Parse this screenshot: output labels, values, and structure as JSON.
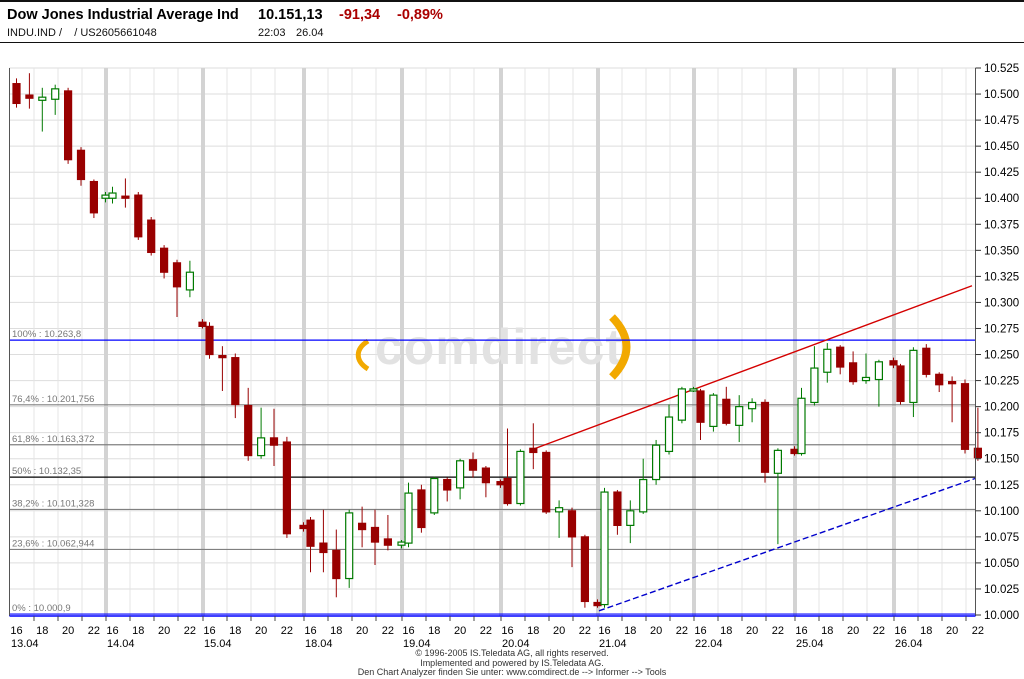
{
  "header": {
    "title": "Dow Jones Industrial Average Ind",
    "price": "10.151,13",
    "change": "-91,34",
    "change_pct": "-0,89%",
    "symbol_line": "INDU.IND /    / US2605661048",
    "time": "22:03",
    "date": "26.04",
    "change_color": "#aa0000"
  },
  "watermark": {
    "text": "comdirect",
    "arc_color": "#f2a900",
    "text_color": "#e2e2e2"
  },
  "footer": {
    "line1": "© 1996-2005 IS.Teledata AG, all rights reserved.",
    "line2": "Implemented and powered by IS.Teledata AG.",
    "line3": "Den Chart Analyzer finden Sie unter: www.comdirect.de --> Informer --> Tools"
  },
  "chart_data": {
    "type": "candlestick",
    "title": "Dow Jones Industrial Average Ind intraday hourly candles",
    "ylim": [
      10000,
      10525
    ],
    "y_axis": {
      "min": 10000,
      "max": 10525,
      "step": 25,
      "tick_labels": [
        "10.525",
        "10.500",
        "10.475",
        "10.450",
        "10.425",
        "10.400",
        "10.375",
        "10.350",
        "10.325",
        "10.300",
        "10.275",
        "10.250",
        "10.225",
        "10.200",
        "10.175",
        "10.150",
        "10.125",
        "10.100",
        "10.075",
        "10.050",
        "10.025",
        "10.000"
      ]
    },
    "x_axis": {
      "hour_labels": [
        "16",
        "18",
        "20",
        "22"
      ]
    },
    "colors": {
      "up": "#007a00",
      "down": "#990000",
      "grid": "#dddddd",
      "vgrid": "#e4e4e4",
      "separator": "#d3d3d3",
      "fib_blue": "#0000ff",
      "fib_gray": "#808080",
      "fib_black": "#000000",
      "trend_red": "#d40000",
      "trend_blue": "#0000cc"
    },
    "fib_levels": [
      {
        "label": "100% : 10.263,8",
        "price": 10263.8,
        "style": "blue"
      },
      {
        "label": "76,4% : 10.201,756",
        "price": 10201.756,
        "style": "gray"
      },
      {
        "label": "61,8% : 10.163,372",
        "price": 10163.372,
        "style": "gray"
      },
      {
        "label": "50% : 10.132,35",
        "price": 10132.35,
        "style": "black"
      },
      {
        "label": "38,2% : 10.101,328",
        "price": 10101.328,
        "style": "gray"
      },
      {
        "label": "23,6% : 10.062,944",
        "price": 10062.944,
        "style": "gray"
      },
      {
        "label": "0% : 10.000,9",
        "price": 10000.9,
        "style": "blue"
      }
    ],
    "trendlines": [
      {
        "name": "resistance",
        "style": "solid",
        "color_key": "trend_red",
        "x1": 530,
        "price1": 10158,
        "x2": 972,
        "price2": 10316
      },
      {
        "name": "support",
        "style": "dashed",
        "color_key": "trend_blue",
        "x1": 599,
        "price1": 10004,
        "x2": 975,
        "price2": 10131
      }
    ],
    "days": [
      {
        "date": "13.04",
        "candles": [
          [
            10510,
            10515,
            10487,
            10491
          ],
          [
            10499,
            10520,
            10486,
            10496
          ],
          [
            10494,
            10506,
            10464,
            10497
          ],
          [
            10495,
            10509,
            10480,
            10505
          ],
          [
            10503,
            10506,
            10433,
            10437
          ],
          [
            10446,
            10449,
            10412,
            10418
          ],
          [
            10416,
            10418,
            10381,
            10386
          ],
          [
            10400,
            10406,
            10396,
            10403
          ]
        ]
      },
      {
        "date": "14.04",
        "candles": [
          [
            10400,
            10411,
            10395,
            10405
          ],
          [
            10402,
            10419,
            10391,
            10400
          ],
          [
            10403,
            10406,
            10360,
            10363
          ],
          [
            10379,
            10382,
            10345,
            10348
          ],
          [
            10352,
            10355,
            10323,
            10329
          ],
          [
            10338,
            10341,
            10286,
            10315
          ],
          [
            10312,
            10340,
            10305,
            10329
          ],
          [
            10281,
            10284,
            10275,
            10277
          ]
        ]
      },
      {
        "date": "15.04",
        "candles": [
          [
            10277,
            10281,
            10246,
            10250
          ],
          [
            10249,
            10258,
            10215,
            10247
          ],
          [
            10247,
            10251,
            10189,
            10202
          ],
          [
            10201,
            10218,
            10148,
            10153
          ],
          [
            10153,
            10199,
            10150,
            10170
          ],
          [
            10170,
            10198,
            10143,
            10163
          ],
          [
            10166,
            10171,
            10074,
            10078
          ],
          [
            10086,
            10089,
            10080,
            10083
          ]
        ]
      },
      {
        "date": "18.04",
        "candles": [
          [
            10091,
            10094,
            10041,
            10066
          ],
          [
            10069,
            10101,
            10041,
            10060
          ],
          [
            10062,
            10082,
            10017,
            10035
          ],
          [
            10035,
            10101,
            10026,
            10098
          ],
          [
            10088,
            10104,
            10065,
            10082
          ],
          [
            10084,
            10101,
            10048,
            10070
          ],
          [
            10073,
            10096,
            10062,
            10067
          ],
          [
            10067,
            10072,
            10064,
            10070
          ]
        ]
      },
      {
        "date": "19.04",
        "candles": [
          [
            10069,
            10127,
            10065,
            10117
          ],
          [
            10120,
            10125,
            10079,
            10084
          ],
          [
            10098,
            10133,
            10096,
            10131
          ],
          [
            10130,
            10132,
            10109,
            10120
          ],
          [
            10122,
            10150,
            10111,
            10148
          ],
          [
            10149,
            10156,
            10132,
            10139
          ],
          [
            10141,
            10143,
            10113,
            10127
          ],
          [
            10128,
            10130,
            10122,
            10125
          ]
        ]
      },
      {
        "date": "20.04",
        "candles": [
          [
            10131,
            10179,
            10105,
            10107
          ],
          [
            10107,
            10159,
            10105,
            10157
          ],
          [
            10160,
            10184,
            10140,
            10156
          ],
          [
            10156,
            10158,
            10097,
            10099
          ],
          [
            10099,
            10110,
            10074,
            10103
          ],
          [
            10100,
            10103,
            10046,
            10075
          ],
          [
            10075,
            10077,
            10007,
            10013
          ],
          [
            10012,
            10015,
            10007,
            10009
          ]
        ]
      },
      {
        "date": "21.04",
        "candles": [
          [
            10010,
            10122,
            10007,
            10118
          ],
          [
            10118,
            10120,
            10077,
            10086
          ],
          [
            10086,
            10110,
            10069,
            10100
          ],
          [
            10099,
            10150,
            10097,
            10130
          ],
          [
            10130,
            10168,
            10125,
            10163
          ],
          [
            10157,
            10202,
            10154,
            10190
          ],
          [
            10187,
            10219,
            10184,
            10217
          ],
          [
            10215,
            10219,
            10214,
            10217
          ]
        ]
      },
      {
        "date": "22.04",
        "candles": [
          [
            10215,
            10217,
            10168,
            10185
          ],
          [
            10181,
            10213,
            10176,
            10211
          ],
          [
            10207,
            10219,
            10182,
            10184
          ],
          [
            10182,
            10211,
            10166,
            10200
          ],
          [
            10198,
            10208,
            10185,
            10204
          ],
          [
            10204,
            10207,
            10127,
            10137
          ],
          [
            10136,
            10160,
            10068,
            10158
          ],
          [
            10159,
            10162,
            10153,
            10155
          ]
        ]
      },
      {
        "date": "25.04",
        "candles": [
          [
            10155,
            10218,
            10153,
            10208
          ],
          [
            10204,
            10258,
            10201,
            10237
          ],
          [
            10233,
            10261,
            10223,
            10255
          ],
          [
            10257,
            10259,
            10231,
            10238
          ],
          [
            10242,
            10253,
            10221,
            10224
          ],
          [
            10225,
            10251,
            10222,
            10228
          ],
          [
            10226,
            10245,
            10200,
            10243
          ],
          [
            10244,
            10247,
            10237,
            10240
          ]
        ]
      },
      {
        "date": "26.04",
        "candles": [
          [
            10239,
            10241,
            10202,
            10205
          ],
          [
            10204,
            10257,
            10190,
            10254
          ],
          [
            10256,
            10260,
            10228,
            10231
          ],
          [
            10231,
            10233,
            10214,
            10221
          ],
          [
            10224,
            10229,
            10185,
            10222
          ],
          [
            10222,
            10226,
            10155,
            10159
          ],
          [
            10160,
            10199,
            10148,
            10151
          ]
        ]
      }
    ]
  }
}
